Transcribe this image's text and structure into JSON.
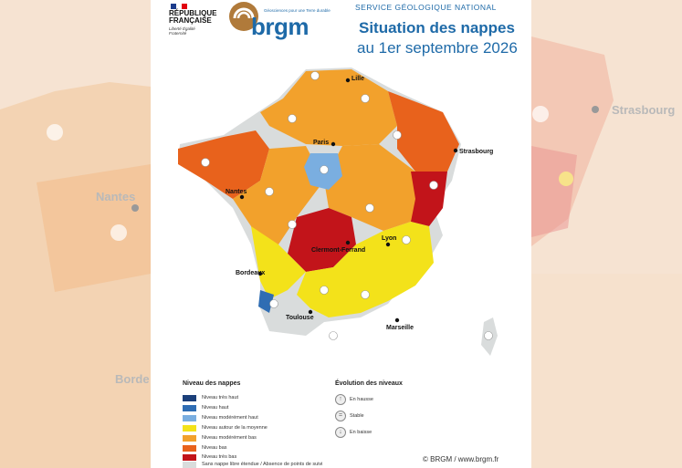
{
  "header": {
    "republique": "RÉPUBLIQUE FRANÇAISE",
    "motto": "Liberté Égalité Fraternité",
    "brgm_tagline": "Géosciences pour une Terre durable",
    "brgm_word": "brgm",
    "service": "SERVICE GÉOLOGIQUE NATIONAL",
    "title_line1": "Situation des nappes",
    "title_line2": "au 1er septembre 2026"
  },
  "background": {
    "left_city": "Nantes",
    "left_city2": "Borde",
    "right_city": "Strasbourg"
  },
  "map": {
    "cities": [
      "Lille",
      "Paris",
      "Strasbourg",
      "Nantes",
      "Lyon",
      "Clermont-Ferrand",
      "Bordeaux",
      "Toulouse",
      "Marseille"
    ],
    "regions": [
      {
        "name": "north-moderately-low",
        "level": "Niveau modérément bas",
        "trend": "En baisse"
      },
      {
        "name": "paris-basin-moderately-high",
        "level": "Niveau modérément haut",
        "trend": "Stable"
      },
      {
        "name": "brittany-low",
        "level": "Niveau bas",
        "trend": "En baisse"
      },
      {
        "name": "east-low",
        "level": "Niveau bas",
        "trend": "En baisse"
      },
      {
        "name": "alsace-very-low",
        "level": "Niveau très bas",
        "trend": "En baisse"
      },
      {
        "name": "massif-central-very-low",
        "level": "Niveau très bas",
        "trend": "En baisse"
      },
      {
        "name": "southwest-average",
        "level": "Niveau autour de la moyenne",
        "trend": "Stable"
      },
      {
        "name": "mediterranean-average",
        "level": "Niveau autour de la moyenne",
        "trend": "Stable"
      },
      {
        "name": "landes-high",
        "level": "Niveau haut",
        "trend": "En hausse"
      }
    ]
  },
  "legend": {
    "title": "Niveau des nappes",
    "items": [
      {
        "label": "Niveau très haut",
        "color": "#1b3f7a"
      },
      {
        "label": "Niveau haut",
        "color": "#2f6db3"
      },
      {
        "label": "Niveau modérément haut",
        "color": "#7aaee0"
      },
      {
        "label": "Niveau autour de la moyenne",
        "color": "#f3e21a"
      },
      {
        "label": "Niveau modérément bas",
        "color": "#f2a12c"
      },
      {
        "label": "Niveau bas",
        "color": "#e8621c"
      },
      {
        "label": "Niveau très bas",
        "color": "#c2141a"
      },
      {
        "label": "Sans nappe libre étendue / Absence de points de suivi",
        "color": "#d9dcdc"
      }
    ]
  },
  "evolution": {
    "title": "Évolution des niveaux",
    "items": [
      {
        "label": "En hausse",
        "icon": "arrow-up-icon"
      },
      {
        "label": "Stable",
        "icon": "equal-icon"
      },
      {
        "label": "En baisse",
        "icon": "arrow-down-icon"
      }
    ]
  },
  "footer": {
    "copyright": "© BRGM / www.brgm.fr"
  }
}
